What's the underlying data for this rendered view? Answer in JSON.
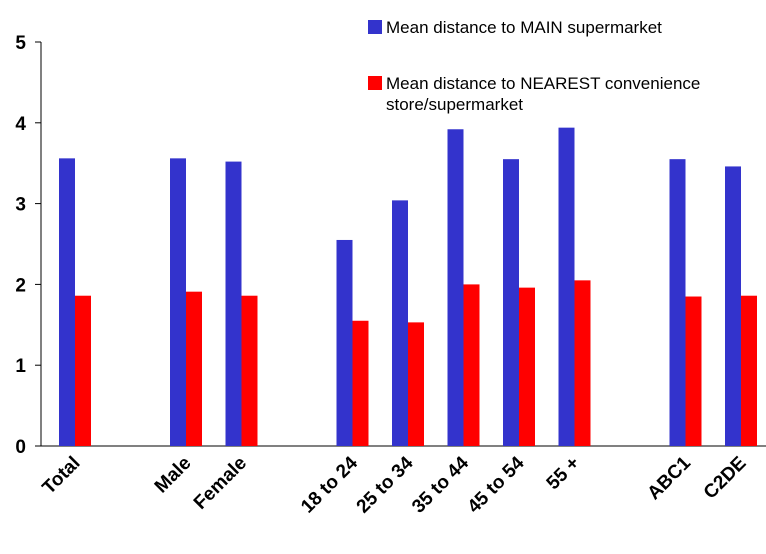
{
  "chart_data": {
    "type": "bar",
    "categories": [
      "Total",
      "",
      "Male",
      "Female",
      "",
      "18 to 24",
      "25 to 34",
      "35 to 44",
      "45 to 54",
      "55 +",
      "",
      "ABC1",
      "C2DE"
    ],
    "series": [
      {
        "name": "Mean distance to MAIN supermarket",
        "color": "#3333cc",
        "values": [
          3.56,
          null,
          3.56,
          3.52,
          null,
          2.55,
          3.04,
          3.92,
          3.55,
          3.94,
          null,
          3.55,
          3.46
        ]
      },
      {
        "name": "Mean distance to NEAREST convenience store/supermarket",
        "color": "#ff0000",
        "values": [
          1.86,
          null,
          1.91,
          1.86,
          null,
          1.55,
          1.53,
          2.0,
          1.96,
          2.05,
          null,
          1.85,
          1.86
        ]
      }
    ],
    "y_ticks": [
      "0",
      "1",
      "2",
      "3",
      "4",
      "5"
    ],
    "ylim": [
      0,
      5
    ],
    "legend_position": "top-right",
    "grid": false
  }
}
